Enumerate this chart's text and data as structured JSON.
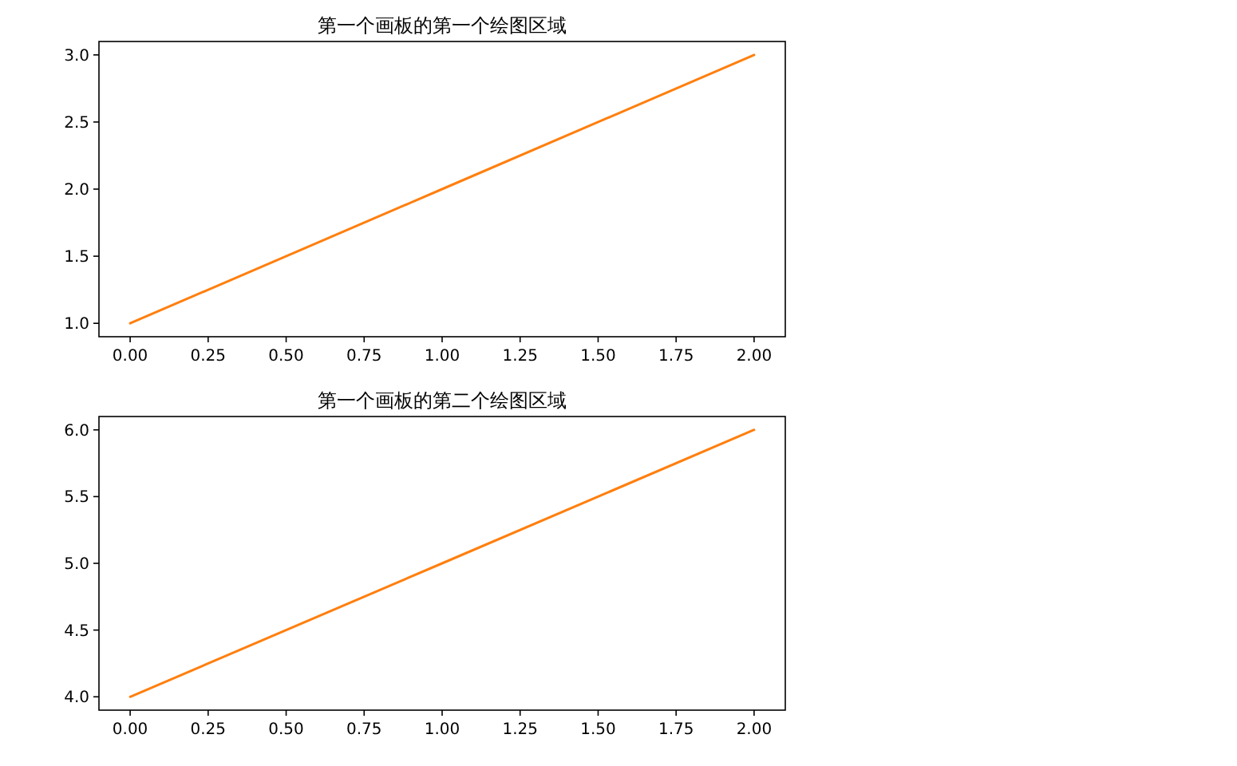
{
  "chart_data": [
    {
      "type": "line",
      "title": "第一个画板的第一个绘图区域",
      "x": [
        0,
        1,
        2
      ],
      "series": [
        {
          "color": "#ff7f0e",
          "values": [
            1,
            2,
            3
          ]
        }
      ],
      "xlim": [
        -0.1,
        2.1
      ],
      "ylim": [
        0.9,
        3.1
      ],
      "xticks": [
        {
          "value": 0,
          "label": "0.00"
        },
        {
          "value": 0.25,
          "label": "0.25"
        },
        {
          "value": 0.5,
          "label": "0.50"
        },
        {
          "value": 0.75,
          "label": "0.75"
        },
        {
          "value": 1,
          "label": "1.00"
        },
        {
          "value": 1.25,
          "label": "1.25"
        },
        {
          "value": 1.5,
          "label": "1.50"
        },
        {
          "value": 1.75,
          "label": "1.75"
        },
        {
          "value": 2,
          "label": "2.00"
        }
      ],
      "yticks": [
        {
          "value": 1,
          "label": "1.0"
        },
        {
          "value": 1.5,
          "label": "1.5"
        },
        {
          "value": 2,
          "label": "2.0"
        },
        {
          "value": 2.5,
          "label": "2.5"
        },
        {
          "value": 3,
          "label": "3.0"
        }
      ]
    },
    {
      "type": "line",
      "title": "第一个画板的第二个绘图区域",
      "x": [
        0,
        1,
        2
      ],
      "series": [
        {
          "color": "#ff7f0e",
          "values": [
            4,
            5,
            6
          ]
        }
      ],
      "xlim": [
        -0.1,
        2.1
      ],
      "ylim": [
        3.9,
        6.1
      ],
      "xticks": [
        {
          "value": 0,
          "label": "0.00"
        },
        {
          "value": 0.25,
          "label": "0.25"
        },
        {
          "value": 0.5,
          "label": "0.50"
        },
        {
          "value": 0.75,
          "label": "0.75"
        },
        {
          "value": 1,
          "label": "1.00"
        },
        {
          "value": 1.25,
          "label": "1.25"
        },
        {
          "value": 1.5,
          "label": "1.50"
        },
        {
          "value": 1.75,
          "label": "1.75"
        },
        {
          "value": 2,
          "label": "2.00"
        }
      ],
      "yticks": [
        {
          "value": 4,
          "label": "4.0"
        },
        {
          "value": 4.5,
          "label": "4.5"
        },
        {
          "value": 5,
          "label": "5.0"
        },
        {
          "value": 5.5,
          "label": "5.5"
        },
        {
          "value": 6,
          "label": "6.0"
        }
      ]
    }
  ]
}
